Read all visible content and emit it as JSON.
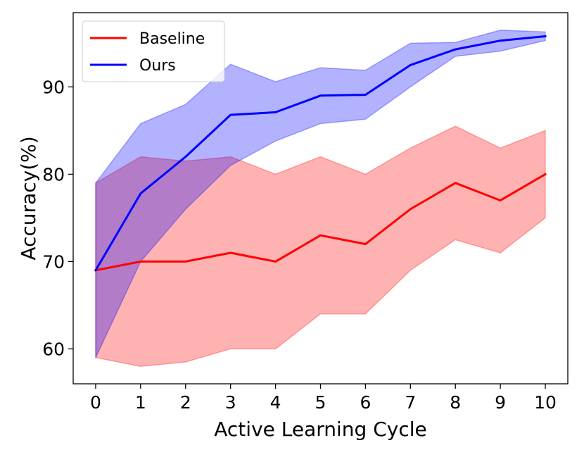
{
  "chart_data": {
    "type": "line",
    "title": "",
    "xlabel": "Active Learning Cycle",
    "ylabel": "Accuracy(%)",
    "x": [
      0,
      1,
      2,
      3,
      4,
      5,
      6,
      7,
      8,
      9,
      10
    ],
    "xlim": [
      -0.5,
      10.5
    ],
    "ylim": [
      56,
      98.5
    ],
    "xticks": [
      "0",
      "1",
      "2",
      "3",
      "4",
      "5",
      "6",
      "7",
      "8",
      "9",
      "10"
    ],
    "yticks": [
      60,
      70,
      80,
      90
    ],
    "ytick_labels": [
      "60",
      "70",
      "80",
      "90"
    ],
    "grid": false,
    "legend_position": "top-left",
    "series": [
      {
        "name": "Baseline",
        "color": "#ff0000",
        "band_color": "#ff0000",
        "values": [
          69,
          70,
          70,
          71,
          70,
          73,
          72,
          76,
          79,
          77,
          80
        ],
        "lower": [
          59,
          58,
          58.5,
          60,
          60,
          64,
          64,
          69,
          72.5,
          71,
          75
        ],
        "upper": [
          79,
          82,
          81.5,
          82,
          80,
          82,
          80,
          83,
          85.5,
          83,
          85
        ]
      },
      {
        "name": "Ours",
        "color": "#0000ff",
        "band_color": "#0000ff",
        "values": [
          69,
          77.8,
          82,
          86.8,
          87.1,
          89,
          89.1,
          92.5,
          94.3,
          95.3,
          95.8
        ],
        "lower": [
          59,
          70,
          76,
          81,
          83.8,
          85.8,
          86.3,
          90,
          93.5,
          94.1,
          95.3
        ],
        "upper": [
          79,
          85.8,
          88,
          92.6,
          90.6,
          92.2,
          91.9,
          95,
          95.1,
          96.5,
          96.3
        ]
      }
    ]
  }
}
